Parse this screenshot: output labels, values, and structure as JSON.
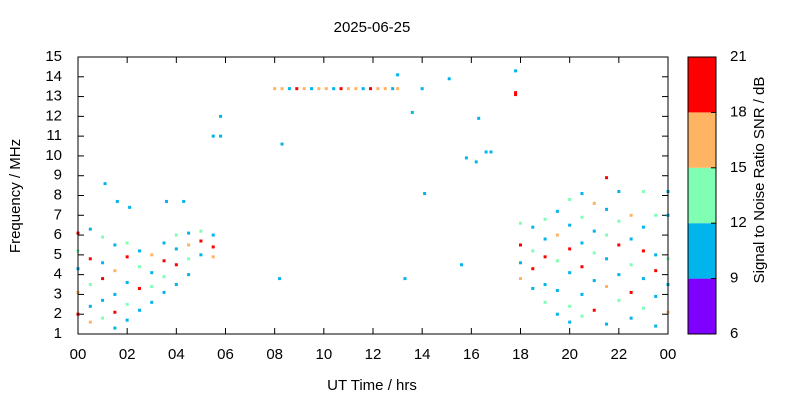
{
  "chart_data": {
    "type": "scatter",
    "title": "2025-06-25",
    "x_label": "UT Time / hrs",
    "y_label": "Frequency / MHz",
    "xlim": [
      0,
      24
    ],
    "xticks": [
      {
        "value": 0,
        "label": "00"
      },
      {
        "value": 2,
        "label": "02"
      },
      {
        "value": 4,
        "label": "04"
      },
      {
        "value": 6,
        "label": "06"
      },
      {
        "value": 8,
        "label": "08"
      },
      10,
      12,
      14,
      16,
      18,
      20,
      22,
      {
        "value": 24,
        "label": "00"
      }
    ],
    "ylim": [
      1,
      15
    ],
    "yticks": [
      1,
      2,
      3,
      4,
      5,
      6,
      7,
      8,
      9,
      10,
      11,
      12,
      13,
      14,
      15
    ],
    "colorbar": {
      "label": "Signal to Noise Ratio SNR / dB",
      "lim": [
        6,
        21
      ],
      "ticks": [
        6,
        9,
        12,
        15,
        18,
        21
      ],
      "colors": [
        "#8000ff",
        "#00b4ec",
        "#80ffb4",
        "#ffb464",
        "#ff0000"
      ]
    },
    "x": [
      0,
      0,
      0,
      0,
      0,
      0.5,
      0.5,
      0.5,
      0.5,
      0.5,
      1,
      1,
      1,
      1,
      1,
      1.5,
      1.5,
      1.5,
      1.5,
      1.5,
      2,
      2,
      2,
      2,
      2,
      2.5,
      2.5,
      2.5,
      2.5,
      3,
      3,
      3,
      3,
      3.5,
      3.5,
      3.5,
      3.5,
      4,
      4,
      4,
      4,
      4.5,
      4.5,
      4.5,
      4.5,
      5,
      5,
      5,
      5.5,
      5.5,
      5.5,
      1.1,
      1.6,
      2.1,
      3.6,
      4.3,
      5.5,
      5.8,
      5.8,
      8.3,
      8.2,
      13,
      13.3,
      13.6,
      14,
      14.1,
      15.1,
      15.6,
      15.8,
      16.2,
      16.3,
      16.6,
      16.8,
      17.8,
      17.8,
      17.8,
      8,
      8.3,
      8.6,
      8.9,
      9.2,
      9.5,
      9.8,
      10.1,
      10.4,
      10.7,
      11,
      11.3,
      11.6,
      11.9,
      12.2,
      12.5,
      12.8,
      13,
      18,
      18,
      18,
      18,
      18.5,
      18.5,
      18.5,
      18.5,
      19,
      19,
      19,
      19,
      19,
      19.5,
      19.5,
      19.5,
      19.5,
      19.5,
      20,
      20,
      20,
      20,
      20,
      20,
      20.5,
      20.5,
      20.5,
      20.5,
      20.5,
      20.5,
      21,
      21,
      21,
      21,
      21,
      21.5,
      21.5,
      21.5,
      21.5,
      21.5,
      21.5,
      22,
      22,
      22,
      22,
      22,
      22.5,
      22.5,
      22.5,
      22.5,
      22.5,
      23,
      23,
      23,
      23,
      23,
      23.5,
      23.5,
      23.5,
      23.5,
      23.5,
      24,
      24,
      24,
      24,
      24
    ],
    "y": [
      6.1,
      5.2,
      4.3,
      3.1,
      2.0,
      6.3,
      4.8,
      3.5,
      2.4,
      1.6,
      5.9,
      4.6,
      3.8,
      2.7,
      1.8,
      5.5,
      4.2,
      3.0,
      2.1,
      1.3,
      5.6,
      4.9,
      3.6,
      2.5,
      1.7,
      5.2,
      4.4,
      3.3,
      2.2,
      5.0,
      4.1,
      3.4,
      2.6,
      5.6,
      4.7,
      3.9,
      3.1,
      6.0,
      5.3,
      4.5,
      3.5,
      6.1,
      5.5,
      4.8,
      4.0,
      6.2,
      5.7,
      5.0,
      6.0,
      5.4,
      4.9,
      8.6,
      7.7,
      7.4,
      7.7,
      7.7,
      11,
      11,
      12,
      10.6,
      3.8,
      14.1,
      3.8,
      12.2,
      13.4,
      8.1,
      13.9,
      4.5,
      9.9,
      9.7,
      11.9,
      10.2,
      10.2,
      14.3,
      13.2,
      13.1,
      13.4,
      13.4,
      13.4,
      13.4,
      13.4,
      13.4,
      13.4,
      13.4,
      13.4,
      13.4,
      13.4,
      13.4,
      13.4,
      13.4,
      13.4,
      13.4,
      13.4,
      13.4,
      6.6,
      5.5,
      4.6,
      3.8,
      6.4,
      5.2,
      4.3,
      3.3,
      6.8,
      5.8,
      4.9,
      3.5,
      2.6,
      7.2,
      6.0,
      4.7,
      3.2,
      2.0,
      7.8,
      6.5,
      5.3,
      4.1,
      2.4,
      1.6,
      8.1,
      6.9,
      5.6,
      4.4,
      3.0,
      1.9,
      7.6,
      6.2,
      5.1,
      3.7,
      2.2,
      8.9,
      7.3,
      6.0,
      4.8,
      3.4,
      1.5,
      8.2,
      6.7,
      5.5,
      4.0,
      2.7,
      7.0,
      5.8,
      4.5,
      3.1,
      1.8,
      8.2,
      6.4,
      5.2,
      3.8,
      2.3,
      7.0,
      5.0,
      4.2,
      2.9,
      1.4,
      8.2,
      7.0,
      4.8,
      3.5,
      2.1
    ],
    "snr": [
      19,
      13,
      10,
      16,
      19,
      10,
      19,
      13,
      10,
      16,
      13,
      10,
      19,
      10,
      13,
      10,
      16,
      10,
      19,
      10,
      13,
      19,
      10,
      13,
      10,
      10,
      13,
      19,
      10,
      16,
      10,
      13,
      10,
      10,
      19,
      13,
      10,
      13,
      10,
      19,
      10,
      10,
      16,
      13,
      10,
      13,
      19,
      10,
      10,
      19,
      16,
      10,
      10,
      10,
      10,
      10,
      10,
      10,
      10,
      10,
      10,
      10,
      10,
      10,
      10,
      10,
      10,
      10,
      10,
      10,
      10,
      10,
      10,
      10,
      19,
      19,
      16,
      16,
      10,
      19,
      16,
      10,
      16,
      16,
      10,
      19,
      16,
      16,
      10,
      19,
      16,
      16,
      10,
      16,
      13,
      19,
      10,
      16,
      10,
      13,
      19,
      10,
      13,
      10,
      19,
      10,
      13,
      10,
      16,
      13,
      10,
      10,
      13,
      10,
      19,
      10,
      13,
      10,
      10,
      13,
      10,
      19,
      10,
      13,
      16,
      10,
      13,
      10,
      19,
      19,
      10,
      13,
      10,
      16,
      10,
      10,
      13,
      19,
      10,
      13,
      16,
      10,
      13,
      19,
      10,
      13,
      10,
      19,
      10,
      13,
      13,
      10,
      19,
      10,
      10,
      10,
      10,
      13,
      10,
      16
    ]
  }
}
